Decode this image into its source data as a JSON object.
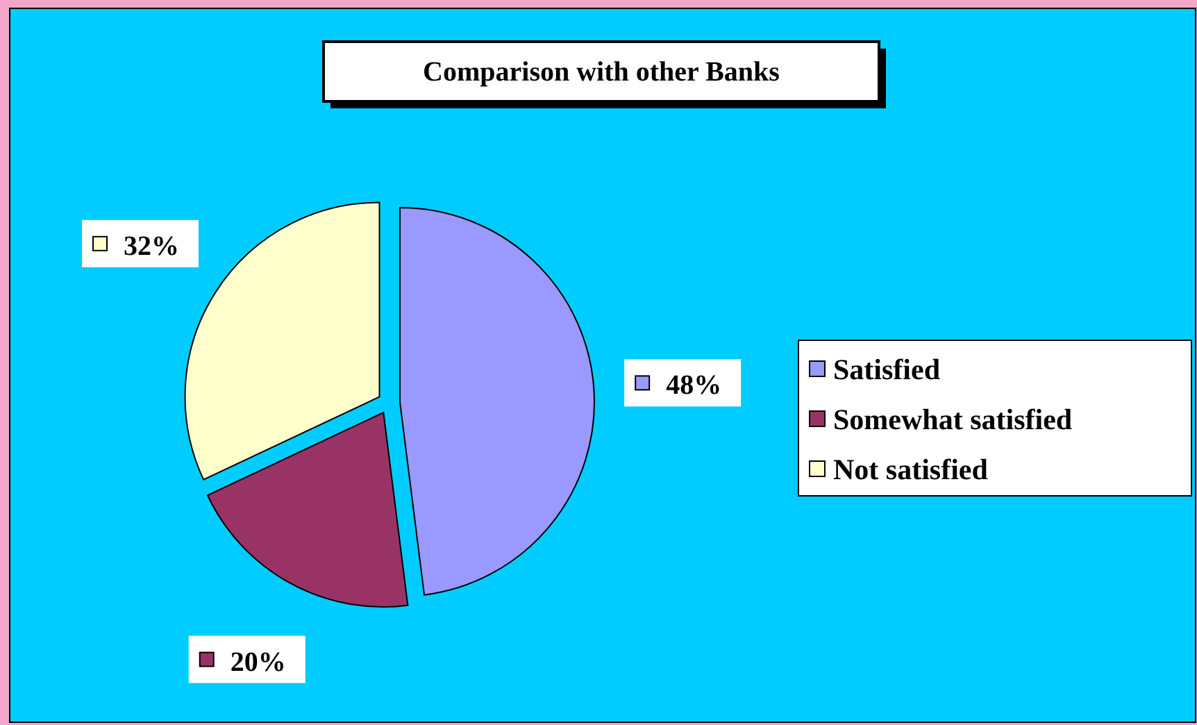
{
  "chart_data": {
    "type": "pie",
    "title": "Comparison with other Banks",
    "categories": [
      "Satisfied",
      "Somewhat satisfied",
      "Not satisfied"
    ],
    "values": [
      48,
      20,
      32
    ],
    "colors": [
      "#9999ff",
      "#993366",
      "#ffffcc"
    ],
    "value_labels": [
      "48%",
      "20%",
      "32%"
    ],
    "legend": "right"
  }
}
